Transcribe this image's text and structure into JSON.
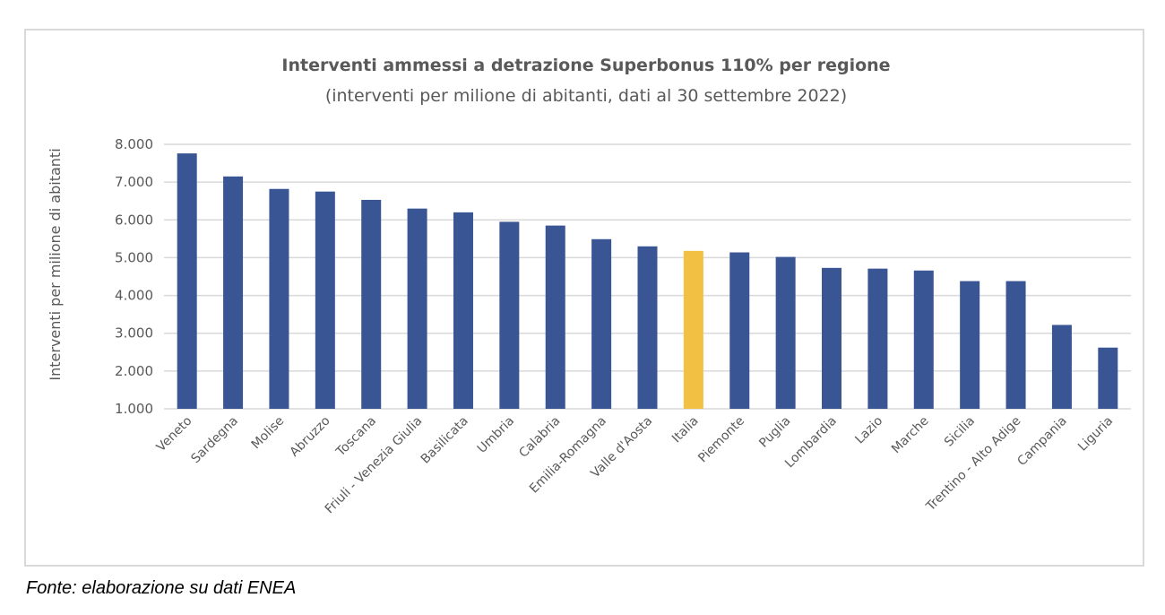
{
  "chart_data": {
    "type": "bar",
    "title": "Interventi ammessi a detrazione Superbonus 110% per regione",
    "subtitle": "(interventi per milione di abitanti, dati al 30 settembre 2022)",
    "xlabel": "",
    "ylabel": "Interventi per milione di abitanti",
    "ylim": [
      1000,
      8000
    ],
    "yticks": [
      1000,
      2000,
      3000,
      4000,
      5000,
      6000,
      7000,
      8000
    ],
    "ytick_labels": [
      "1.000",
      "2.000",
      "3.000",
      "4.000",
      "5.000",
      "6.000",
      "7.000",
      "8.000"
    ],
    "grid": true,
    "legend": "none",
    "categories": [
      "Veneto",
      "Sardegna",
      "Molise",
      "Abruzzo",
      "Toscana",
      "Friuli - Venezia Giulia",
      "Basilicata",
      "Umbria",
      "Calabria",
      "Emilia-Romagna",
      "Valle d'Aosta",
      "Italia",
      "Piemonte",
      "Puglia",
      "Lombardia",
      "Lazio",
      "Marche",
      "Sicilia",
      "Trentino - Alto Adige",
      "Campania",
      "Liguria"
    ],
    "values": [
      7760,
      7150,
      6820,
      6750,
      6530,
      6300,
      6200,
      5950,
      5850,
      5490,
      5300,
      5180,
      5140,
      5020,
      4730,
      4710,
      4660,
      4380,
      4380,
      3220,
      2620
    ],
    "highlight": "Italia",
    "colors": {
      "bar": "#3a5594",
      "highlight": "#f2c043",
      "grid": "#d9d9d9",
      "text": "#595959"
    }
  },
  "source": "Fonte: elaborazione su dati ENEA"
}
